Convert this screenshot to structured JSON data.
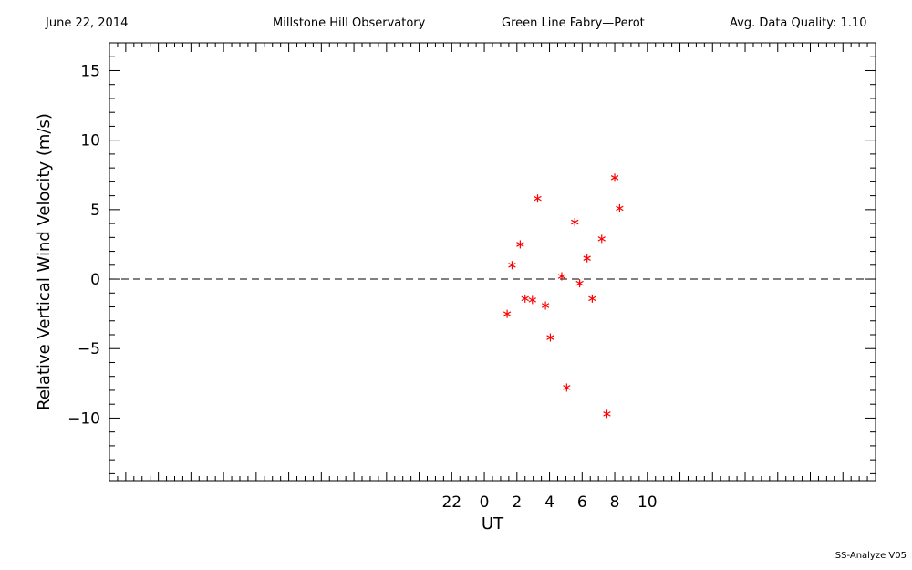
{
  "header": {
    "date": "June 22, 2014",
    "observatory": "Millstone Hill Observatory",
    "instrument": "Green Line Fabry—Perot",
    "quality": "Avg. Data Quality: 1.10"
  },
  "footer": "SS-Analyze V05",
  "colors": {
    "points": "#ff0000",
    "axes": "#000000",
    "zero_line": "#000000"
  },
  "chart_data": {
    "type": "scatter",
    "title": "",
    "xlabel": "UT",
    "ylabel": "Relative Vertical Wind Velocity (m/s)",
    "xlim": [
      -23,
      24
    ],
    "ylim": [
      -14.5,
      17
    ],
    "x_ticks": [
      22,
      0,
      2,
      4,
      6,
      8,
      10
    ],
    "y_ticks": [
      15,
      10,
      5,
      0,
      -5,
      -10
    ],
    "zero_line": {
      "y": 0,
      "style": "dashed"
    },
    "marker": "asterisk",
    "series": [
      {
        "x": [
          1.4,
          1.7,
          2.2,
          2.5,
          2.95,
          3.27,
          3.75,
          4.05,
          4.75,
          5.05,
          5.55,
          5.85,
          6.3,
          6.62,
          7.2,
          7.52,
          8.0,
          8.3
        ],
        "y": [
          -2.5,
          1.0,
          2.5,
          -1.4,
          -1.5,
          5.8,
          -1.9,
          -4.2,
          0.2,
          -7.8,
          4.1,
          -0.3,
          1.5,
          -1.4,
          2.9,
          -9.7,
          7.3,
          5.1
        ]
      }
    ]
  }
}
